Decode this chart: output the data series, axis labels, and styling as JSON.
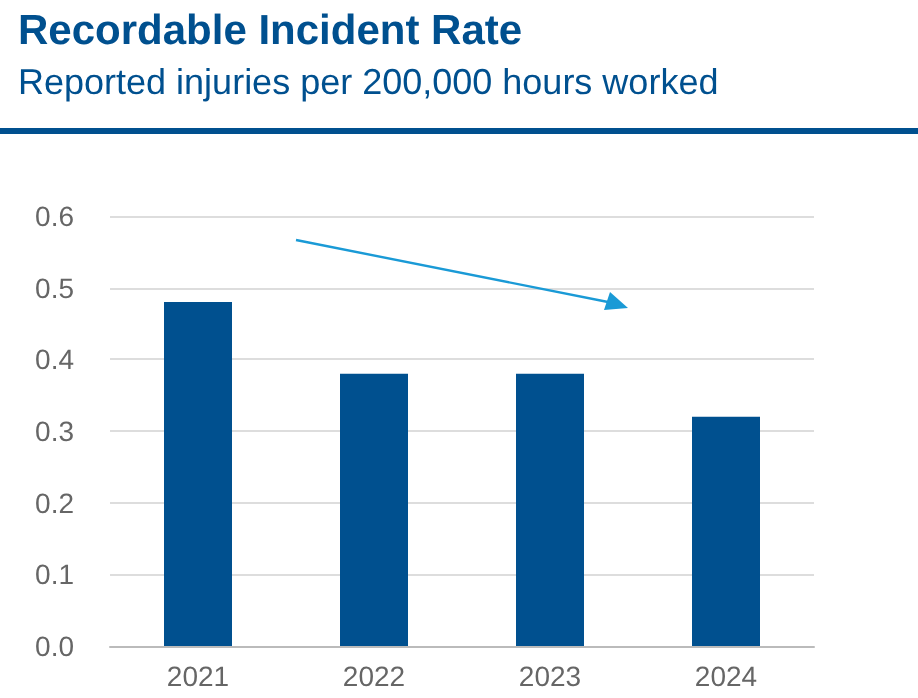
{
  "chart_data": {
    "type": "bar",
    "title": "Recordable Incident Rate",
    "subtitle": "Reported injuries per 200,000 hours worked",
    "categories": [
      "2021",
      "2022",
      "2023",
      "2024"
    ],
    "values": [
      0.48,
      0.38,
      0.38,
      0.32
    ],
    "color": "#00508f",
    "ylim": [
      0,
      0.6
    ],
    "yticks": [
      {
        "value": 0,
        "label": "0.0"
      },
      0.1,
      0.2,
      0.3,
      0.4,
      0.5,
      0.6
    ],
    "grid": "y"
  }
}
